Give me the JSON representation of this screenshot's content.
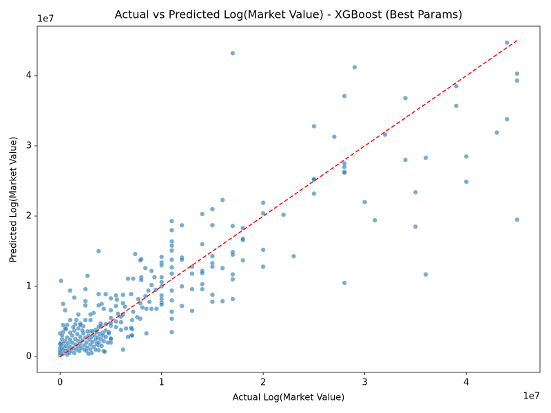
{
  "chart_data": {
    "type": "scatter",
    "title": "Actual vs Predicted Log(Market Value) - XGBoost (Best Params)",
    "xlabel": "Actual Log(Market Value)",
    "ylabel": "Predicted Log(Market Value)",
    "x_offset_label": "1e7",
    "y_offset_label": "1e7",
    "xlim": [
      -0.225,
      4.725
    ],
    "ylim": [
      -0.225,
      4.705
    ],
    "xticks": [
      0,
      1,
      2,
      3,
      4
    ],
    "yticks": [
      0,
      1,
      2,
      3,
      4
    ],
    "grid": false,
    "series": [
      {
        "color": "#1f77b4",
        "x": [
          1.7,
          2.9,
          4.4,
          4.5,
          4.5,
          2.8,
          3.4,
          3.9,
          3.9,
          4.4,
          2.5,
          2.7,
          3.2,
          4.3,
          3.4,
          3.6,
          4.0,
          2.8,
          2.8,
          2.8,
          2.8,
          2.5,
          2.5,
          4.0,
          3.5,
          2.5,
          1.6,
          3.0,
          2.0,
          1.5,
          1.4,
          2.0,
          2.2,
          3.1,
          4.5,
          1.1,
          1.2,
          1.5,
          1.7,
          1.8,
          3.5,
          1.1,
          1.8,
          1.8,
          1.1,
          1.1,
          1.4,
          1.1,
          2.0,
          0.38,
          0.74,
          1.7,
          1.7,
          2.3,
          1.5,
          1.2,
          1.0,
          0.8,
          0.79,
          1.2,
          1.1,
          1.8,
          1.0,
          1.5,
          1.0,
          1.5,
          1.3,
          2.0,
          0.84,
          1.1,
          1.6,
          0.9,
          1.4,
          1.3,
          1.4,
          1.1,
          1.7,
          0.27,
          2.8,
          3.6,
          0.8,
          0.93,
          1.0,
          0.67,
          0.72,
          0.8,
          1.7,
          0.01,
          1.0,
          1.2,
          1.4,
          0.9,
          1.0,
          1.3,
          1.4,
          0.25,
          0.94,
          0.87,
          0.1,
          1.1,
          0.38,
          0.45,
          0.62,
          0.55,
          0.7,
          0.84,
          1.0,
          1.5,
          1.7,
          1.6,
          1.5,
          0.14,
          0.5,
          0.56,
          0.77,
          0.88,
          1.0,
          1.1,
          1.0,
          1.0,
          1.2,
          0.79,
          0.62,
          0.25,
          0.25,
          0.38,
          0.41,
          0.03,
          0.55,
          0.64,
          0.81,
          0.85,
          0.9,
          0.95,
          1.3,
          1.1,
          0.05,
          0.33,
          0.3,
          0.5,
          0.57,
          0.62,
          0.43,
          0.18,
          0.72,
          1.1,
          0.5,
          0.6,
          0.76,
          0.79,
          0.25,
          0.3,
          0.16,
          0.1,
          0.71,
          0.55,
          0.6,
          0.4,
          0.45,
          0.2,
          0.15,
          0.03,
          0.07,
          0.5,
          0.5,
          0.4,
          0.38,
          0.23,
          0.55,
          0.65,
          0.71,
          0.7,
          0.06,
          0.45,
          0.48,
          0.6,
          1.1,
          0.85,
          0.35,
          0.3,
          0.42,
          0.7,
          0.71,
          0.67,
          0.5,
          0.5,
          0.5,
          0.38,
          0.38,
          0.43,
          0.62,
          0,
          0,
          0,
          0,
          0.01,
          0.01,
          0.02,
          0.02,
          0.03,
          0.03,
          0.04,
          0.05,
          0.05,
          0.06,
          0.07,
          0.07,
          0.08,
          0.08,
          0.09,
          0.1,
          0.1,
          0.11,
          0.12,
          0.12,
          0.13,
          0.14,
          0.15,
          0.15,
          0.16,
          0.17,
          0.18,
          0.18,
          0.19,
          0.2,
          0.2,
          0.21,
          0.22,
          0.23,
          0.24,
          0.24,
          0.25,
          0.26,
          0.27,
          0.28,
          0.29,
          0.3,
          0.3,
          0.31,
          0.32,
          0.33,
          0.34,
          0.35,
          0.36,
          0.37,
          0.38,
          0.39,
          0.4,
          0.41,
          0.42,
          0.43,
          0.45,
          0.47,
          0.48,
          0.03,
          0,
          0.05,
          0.02,
          0.1,
          0.14,
          0.22,
          0.27,
          0.32,
          0.36,
          0.13,
          0.18,
          0.2,
          0,
          0.26,
          0.31,
          0.28,
          0.35,
          0.44
        ],
        "y": [
          4.32,
          4.12,
          4.47,
          4.03,
          3.93,
          3.71,
          3.68,
          3.85,
          3.57,
          3.38,
          3.28,
          3.13,
          3.16,
          3.19,
          2.8,
          2.83,
          2.85,
          2.75,
          2.7,
          2.63,
          2.62,
          2.53,
          2.52,
          2.49,
          2.34,
          2.32,
          2.23,
          2.2,
          2.19,
          2.1,
          2.03,
          2.04,
          2.02,
          1.94,
          1.95,
          1.93,
          1.87,
          1.87,
          1.86,
          1.83,
          1.85,
          1.8,
          1.68,
          1.66,
          1.64,
          1.58,
          1.6,
          1.51,
          1.52,
          1.5,
          1.46,
          1.49,
          1.45,
          1.43,
          1.43,
          1.41,
          1.42,
          1.39,
          1.37,
          1.38,
          1.38,
          1.37,
          1.34,
          1.33,
          1.3,
          1.28,
          1.28,
          1.28,
          1.26,
          1.27,
          1.26,
          1.22,
          1.22,
          1.18,
          1.19,
          1.18,
          1.17,
          1.15,
          1.05,
          1.17,
          1.13,
          1.13,
          1.13,
          1.11,
          1.11,
          1.09,
          1.1,
          1.08,
          1.06,
          1.0,
          1.03,
          1.02,
          1.0,
          0.96,
          0.96,
          0.96,
          0.95,
          0.94,
          0.94,
          0.94,
          0.89,
          0.89,
          0.88,
          0.87,
          0.89,
          0.86,
          0.87,
          0.88,
          0.82,
          0.79,
          0.78,
          0.84,
          0.83,
          0.81,
          0.82,
          0.78,
          0.82,
          0.8,
          0.77,
          0.74,
          0.72,
          0.76,
          0.76,
          0.79,
          0.73,
          0.73,
          0.75,
          0.75,
          0.72,
          0.71,
          0.7,
          0.68,
          0.68,
          0.68,
          0.65,
          0.64,
          0.66,
          0.62,
          0.6,
          0.66,
          0.61,
          0.6,
          0.68,
          0.6,
          0.64,
          0.54,
          0.55,
          0.57,
          0.56,
          0.54,
          0.52,
          0.52,
          0.52,
          0.52,
          0.52,
          0.5,
          0.49,
          0.47,
          0.46,
          0.47,
          0.46,
          0.45,
          0.45,
          0.44,
          0.48,
          0.44,
          0.42,
          0.43,
          0.42,
          0.4,
          0.39,
          0.41,
          0.39,
          0.37,
          0.35,
          0.38,
          0.35,
          0.33,
          0.38,
          0.36,
          0.34,
          0.3,
          0.3,
          0.28,
          0.26,
          0.25,
          0.2,
          0.16,
          0.09,
          0.08,
          0.1,
          0.02,
          0.05,
          0.08,
          0.12,
          0.15,
          0.2,
          0.1,
          0.25,
          0.04,
          0.18,
          0.12,
          0.22,
          0.08,
          0.15,
          0.03,
          0.27,
          0.1,
          0.19,
          0.05,
          0.24,
          0.14,
          0.08,
          0.2,
          0.3,
          0.12,
          0.05,
          0.17,
          0.25,
          0.1,
          0.32,
          0.22,
          0.14,
          0.08,
          0.28,
          0.18,
          0.12,
          0.23,
          0.33,
          0.16,
          0.1,
          0.27,
          0.2,
          0.13,
          0.3,
          0.24,
          0.17,
          0.1,
          0.28,
          0.21,
          0.14,
          0.3,
          0.24,
          0.18,
          0.27,
          0.2,
          0.32,
          0.25,
          0.15,
          0.3,
          0.22,
          0.28,
          0.2,
          0.33,
          0.35,
          0.33,
          0.4,
          0.3,
          0.34,
          0.37,
          0.37,
          0.36,
          0.36,
          0.35,
          0.42,
          0.4,
          0.45,
          0.18,
          0.08,
          0.05,
          0.04,
          0.1,
          0.07
        ]
      }
    ],
    "reference_line": {
      "color": "#ff0000",
      "x": [
        0,
        4.5
      ],
      "y": [
        0,
        4.5
      ]
    }
  }
}
